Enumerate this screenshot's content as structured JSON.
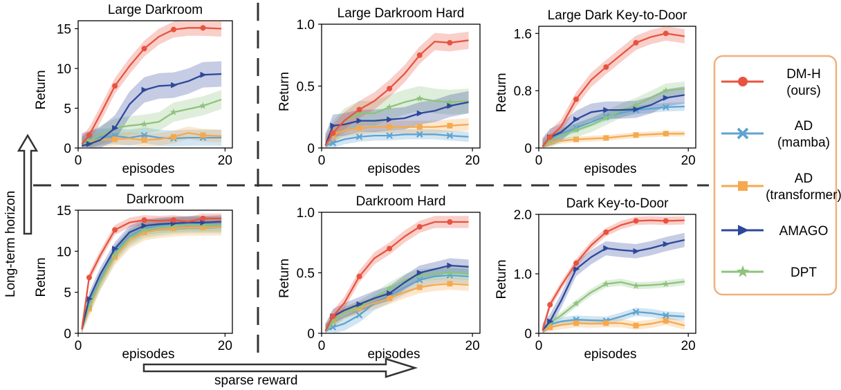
{
  "legend": {
    "entries": [
      {
        "lines": [
          "DM-H",
          "(ours)"
        ],
        "color": "#e8533f",
        "marker": "circle"
      },
      {
        "lines": [
          "AD",
          "(mamba)"
        ],
        "color": "#5ea3d1",
        "marker": "x"
      },
      {
        "lines": [
          "AD",
          "(transformer)"
        ],
        "color": "#f5a94e",
        "marker": "square"
      },
      {
        "lines": [
          "AMAGO"
        ],
        "color": "#2d479a",
        "marker": "triangle"
      },
      {
        "lines": [
          "DPT"
        ],
        "color": "#8dc37c",
        "marker": "star"
      }
    ]
  },
  "annotations": {
    "vertical_arrow_label": "Long-term horizon",
    "horizontal_arrow_label": "sparse reward"
  },
  "chart_data": [
    {
      "type": "line",
      "title": "Large Darkroom",
      "xlabel": "episodes",
      "ylabel": "Return",
      "xlim": [
        0,
        21
      ],
      "ylim": [
        0,
        16
      ],
      "xticks": [
        0,
        20
      ],
      "xtick_labels": [
        "0",
        "20"
      ],
      "yticks": [
        0,
        5,
        10,
        15
      ],
      "ytick_labels": [
        "0",
        "5",
        "10",
        "15"
      ],
      "x": [
        0.5,
        1.5,
        3,
        5,
        7,
        9,
        11,
        13,
        15,
        17,
        19.5
      ],
      "series": [
        {
          "name": "DM-H (ours)",
          "values": [
            0.5,
            1.6,
            4.2,
            7.8,
            10.3,
            12.5,
            14.0,
            14.9,
            15.1,
            15.1,
            15.0
          ],
          "band": 1.0
        },
        {
          "name": "AD (mamba)",
          "values": [
            0.3,
            1.0,
            1.4,
            1.5,
            1.3,
            1.6,
            1.3,
            1.2,
            1.3,
            1.3,
            1.3
          ],
          "band": 1.0
        },
        {
          "name": "AD (transformer)",
          "values": [
            0.3,
            0.7,
            1.0,
            1.1,
            1.2,
            1.0,
            1.1,
            1.4,
            1.9,
            1.6,
            1.5
          ],
          "band": 0.8
        },
        {
          "name": "AMAGO",
          "values": [
            0.3,
            0.5,
            1.0,
            2.5,
            5.5,
            7.3,
            7.8,
            7.9,
            8.4,
            9.2,
            9.3
          ],
          "band": 1.6
        },
        {
          "name": "DPT",
          "values": [
            0.3,
            0.9,
            1.6,
            2.5,
            2.8,
            3.0,
            3.3,
            4.5,
            4.9,
            5.3,
            6.1
          ],
          "band": 1.2
        }
      ]
    },
    {
      "type": "line",
      "title": "Large Darkroom Hard",
      "xlabel": "episodes",
      "ylabel": "Return",
      "xlim": [
        0,
        21
      ],
      "ylim": [
        0,
        1.0
      ],
      "xticks": [
        0,
        20
      ],
      "xtick_labels": [
        "0",
        "20"
      ],
      "yticks": [
        0,
        0.5,
        1.0
      ],
      "ytick_labels": [
        "0",
        "0.5",
        "1.0"
      ],
      "x": [
        0.5,
        1.5,
        3,
        5,
        7,
        9,
        11,
        13,
        15,
        17,
        19.5
      ],
      "series": [
        {
          "name": "DM-H (ours)",
          "values": [
            0.02,
            0.12,
            0.22,
            0.31,
            0.38,
            0.48,
            0.6,
            0.75,
            0.86,
            0.85,
            0.87
          ],
          "band": 0.07
        },
        {
          "name": "AD (mamba)",
          "values": [
            0.02,
            0.04,
            0.07,
            0.09,
            0.1,
            0.1,
            0.11,
            0.11,
            0.11,
            0.1,
            0.09
          ],
          "band": 0.04
        },
        {
          "name": "AD (transformer)",
          "values": [
            0.02,
            0.11,
            0.14,
            0.16,
            0.17,
            0.17,
            0.17,
            0.17,
            0.17,
            0.18,
            0.19
          ],
          "band": 0.05
        },
        {
          "name": "AMAGO",
          "values": [
            0.02,
            0.18,
            0.19,
            0.22,
            0.22,
            0.23,
            0.24,
            0.28,
            0.3,
            0.34,
            0.37
          ],
          "band": 0.09
        },
        {
          "name": "DPT",
          "values": [
            0.02,
            0.12,
            0.22,
            0.28,
            0.28,
            0.33,
            0.37,
            0.4,
            0.38,
            0.37,
            0.38
          ],
          "band": 0.1
        }
      ]
    },
    {
      "type": "line",
      "title": "Large Dark Key-to-Door",
      "xlabel": "episodes",
      "ylabel": "Return",
      "xlim": [
        0,
        21
      ],
      "ylim": [
        0,
        1.7
      ],
      "xticks": [
        0,
        20
      ],
      "xtick_labels": [
        "0",
        "20"
      ],
      "yticks": [
        0,
        0.8,
        1.6
      ],
      "ytick_labels": [
        "0",
        "0.8",
        "1.6"
      ],
      "x": [
        0.5,
        1.5,
        3,
        5,
        7,
        9,
        11,
        13,
        15,
        17,
        19.5
      ],
      "series": [
        {
          "name": "DM-H (ours)",
          "values": [
            0.02,
            0.15,
            0.3,
            0.68,
            0.95,
            1.13,
            1.3,
            1.47,
            1.55,
            1.6,
            1.56
          ],
          "band": 0.1
        },
        {
          "name": "AD (mamba)",
          "values": [
            0.02,
            0.13,
            0.2,
            0.28,
            0.36,
            0.44,
            0.49,
            0.53,
            0.55,
            0.57,
            0.58
          ],
          "band": 0.06
        },
        {
          "name": "AD (transformer)",
          "values": [
            0.02,
            0.08,
            0.1,
            0.12,
            0.13,
            0.14,
            0.16,
            0.18,
            0.19,
            0.2,
            0.2
          ],
          "band": 0.04
        },
        {
          "name": "AMAGO",
          "values": [
            0.02,
            0.15,
            0.22,
            0.4,
            0.5,
            0.53,
            0.53,
            0.54,
            0.6,
            0.7,
            0.74
          ],
          "band": 0.12
        },
        {
          "name": "DPT",
          "values": [
            0.02,
            0.1,
            0.18,
            0.25,
            0.32,
            0.42,
            0.52,
            0.6,
            0.7,
            0.8,
            0.83
          ],
          "band": 0.1
        }
      ]
    },
    {
      "type": "line",
      "title": "Darkroom",
      "xlabel": "episodes",
      "ylabel": "Return",
      "xlim": [
        0,
        21
      ],
      "ylim": [
        0,
        15
      ],
      "xticks": [
        0,
        20
      ],
      "xtick_labels": [
        "0",
        "20"
      ],
      "yticks": [
        0,
        5,
        10,
        15
      ],
      "ytick_labels": [
        "0",
        "5",
        "10",
        "15"
      ],
      "x": [
        0.5,
        1.5,
        3,
        5,
        7,
        9,
        11,
        13,
        15,
        17,
        19.5
      ],
      "series": [
        {
          "name": "DM-H (ours)",
          "values": [
            0.5,
            6.8,
            9.5,
            12.6,
            13.5,
            13.8,
            13.7,
            13.8,
            13.6,
            14.0,
            14.0
          ],
          "band": 0.6
        },
        {
          "name": "AD (mamba)",
          "values": [
            0.5,
            3.5,
            6.5,
            9.8,
            11.8,
            12.8,
            13.1,
            13.2,
            13.3,
            13.3,
            13.3
          ],
          "band": 0.9
        },
        {
          "name": "AD (transformer)",
          "values": [
            0.5,
            3.0,
            6.2,
            9.3,
            11.3,
            12.3,
            12.6,
            12.8,
            12.9,
            12.9,
            12.9
          ],
          "band": 1.0
        },
        {
          "name": "AMAGO",
          "values": [
            0.5,
            4.2,
            7.2,
            10.3,
            12.3,
            13.1,
            13.3,
            13.4,
            13.5,
            13.5,
            13.6
          ],
          "band": 0.8
        },
        {
          "name": "DPT",
          "values": [
            0.5,
            3.3,
            6.3,
            9.6,
            11.6,
            12.6,
            12.9,
            13.1,
            13.2,
            13.2,
            13.2
          ],
          "band": 1.0
        }
      ]
    },
    {
      "type": "line",
      "title": "Darkroom Hard",
      "xlabel": "episodes",
      "ylabel": "Return",
      "xlim": [
        0,
        21
      ],
      "ylim": [
        0,
        1.0
      ],
      "xticks": [
        0,
        20
      ],
      "xtick_labels": [
        "0",
        "20"
      ],
      "yticks": [
        0,
        0.5,
        1.0
      ],
      "ytick_labels": [
        "0",
        "0.5",
        "1.0"
      ],
      "x": [
        0.5,
        1.5,
        3,
        5,
        7,
        9,
        11,
        13,
        15,
        17,
        19.5
      ],
      "series": [
        {
          "name": "DM-H (ours)",
          "values": [
            0.02,
            0.14,
            0.25,
            0.47,
            0.62,
            0.7,
            0.8,
            0.88,
            0.92,
            0.92,
            0.92
          ],
          "band": 0.05
        },
        {
          "name": "AD (mamba)",
          "values": [
            0.02,
            0.05,
            0.08,
            0.15,
            0.25,
            0.31,
            0.38,
            0.44,
            0.47,
            0.48,
            0.47
          ],
          "band": 0.06
        },
        {
          "name": "AD (transformer)",
          "values": [
            0.02,
            0.1,
            0.17,
            0.21,
            0.25,
            0.29,
            0.34,
            0.38,
            0.4,
            0.41,
            0.4
          ],
          "band": 0.05
        },
        {
          "name": "AMAGO",
          "values": [
            0.02,
            0.14,
            0.19,
            0.24,
            0.29,
            0.33,
            0.42,
            0.5,
            0.53,
            0.56,
            0.55
          ],
          "band": 0.06
        },
        {
          "name": "DPT",
          "values": [
            0.02,
            0.1,
            0.17,
            0.22,
            0.29,
            0.37,
            0.44,
            0.48,
            0.49,
            0.5,
            0.49
          ],
          "band": 0.05
        }
      ]
    },
    {
      "type": "line",
      "title": "Dark Key-to-Door",
      "xlabel": "episodes",
      "ylabel": "Return",
      "xlim": [
        0,
        21
      ],
      "ylim": [
        0,
        2.0
      ],
      "xticks": [
        0,
        20
      ],
      "xtick_labels": [
        "0",
        "20"
      ],
      "yticks": [
        0,
        1.0,
        2.0
      ],
      "ytick_labels": [
        "0",
        "1.0",
        "2.0"
      ],
      "x": [
        0.5,
        1.5,
        3,
        5,
        7,
        9,
        11,
        13,
        15,
        17,
        19.5
      ],
      "series": [
        {
          "name": "DM-H (ours)",
          "values": [
            0.05,
            0.48,
            0.8,
            1.18,
            1.48,
            1.7,
            1.82,
            1.89,
            1.9,
            1.89,
            1.9
          ],
          "band": 0.07
        },
        {
          "name": "AD (mamba)",
          "values": [
            0.05,
            0.15,
            0.2,
            0.23,
            0.22,
            0.21,
            0.28,
            0.36,
            0.34,
            0.3,
            0.28
          ],
          "band": 0.07
        },
        {
          "name": "AD (transformer)",
          "values": [
            0.05,
            0.1,
            0.14,
            0.17,
            0.16,
            0.17,
            0.17,
            0.13,
            0.16,
            0.21,
            0.13
          ],
          "band": 0.07
        },
        {
          "name": "AMAGO",
          "values": [
            0.05,
            0.2,
            0.55,
            1.08,
            1.28,
            1.43,
            1.4,
            1.38,
            1.43,
            1.5,
            1.57
          ],
          "band": 0.12
        },
        {
          "name": "DPT",
          "values": [
            0.05,
            0.18,
            0.3,
            0.5,
            0.69,
            0.83,
            0.86,
            0.8,
            0.81,
            0.83,
            0.87
          ],
          "band": 0.06
        }
      ]
    }
  ]
}
